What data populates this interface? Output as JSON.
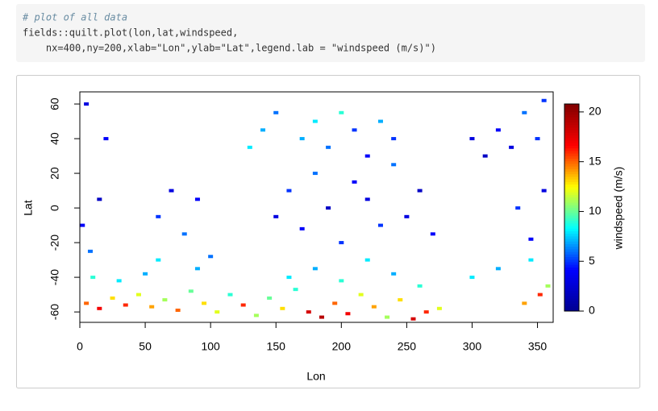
{
  "code": [
    "# plot of all data",
    "fields::quilt.plot(lon,lat,windspeed,",
    "    nx=400,ny=200,xlab=\"Lon\",ylab=\"Lat\",legend.lab = \"windspeed (m/s)\")"
  ],
  "chart_data": {
    "type": "quilt",
    "xlabel": "Lon",
    "ylabel": "Lat",
    "legend_label": "windspeed (m/s)",
    "xlim": [
      0,
      362
    ],
    "xticks": [
      0,
      50,
      100,
      150,
      200,
      250,
      300,
      350
    ],
    "ylim": [
      -66,
      67
    ],
    "yticks": [
      -60,
      -40,
      -20,
      0,
      20,
      40,
      60
    ],
    "zlim": [
      0,
      20.8
    ],
    "zticks": [
      0,
      5,
      10,
      15,
      20
    ],
    "colors": [
      "#00008F",
      "#0000FF",
      "#00FFFF",
      "#FFFF00",
      "#FF0000",
      "#800000"
    ],
    "x": [
      5,
      15,
      25,
      35,
      45,
      55,
      65,
      75,
      85,
      95,
      105,
      115,
      125,
      135,
      145,
      155,
      165,
      175,
      185,
      195,
      205,
      215,
      225,
      235,
      245,
      255,
      265,
      275,
      340,
      352,
      358,
      10,
      30,
      50,
      60,
      90,
      100,
      160,
      180,
      200,
      220,
      240,
      260,
      300,
      320,
      345,
      8,
      2,
      60,
      70,
      80,
      90,
      150,
      160,
      170,
      180,
      190,
      200,
      210,
      220,
      230,
      240,
      250,
      260,
      270,
      335,
      345,
      355,
      15,
      170,
      180,
      190,
      200,
      210,
      220,
      230,
      240,
      320,
      330,
      340,
      350,
      300,
      310,
      140,
      130,
      150,
      20,
      5,
      355
    ],
    "y": [
      -55,
      -58,
      -52,
      -56,
      -50,
      -57,
      -53,
      -59,
      -48,
      -55,
      -60,
      -50,
      -56,
      -62,
      -52,
      -58,
      -47,
      -60,
      -63,
      -55,
      -61,
      -50,
      -57,
      -63,
      -53,
      -64,
      -60,
      -58,
      -55,
      -50,
      -45,
      -40,
      -42,
      -38,
      -30,
      -35,
      -28,
      -40,
      -35,
      -42,
      -30,
      -38,
      -45,
      -40,
      -35,
      -30,
      -25,
      -10,
      -5,
      10,
      -15,
      5,
      -5,
      10,
      -12,
      20,
      0,
      -20,
      15,
      5,
      -10,
      25,
      -5,
      10,
      -15,
      0,
      -18,
      10,
      5,
      40,
      50,
      35,
      55,
      45,
      30,
      50,
      40,
      45,
      35,
      55,
      40,
      40,
      30,
      45,
      35,
      55,
      40,
      60,
      62
    ],
    "values": [
      15,
      17,
      13,
      16,
      12,
      14,
      11,
      15,
      10,
      13,
      12,
      9,
      16,
      11,
      10,
      13,
      9,
      18,
      19,
      15,
      17,
      12,
      14,
      11,
      13,
      18,
      16,
      12,
      14,
      16,
      11,
      9,
      8,
      7,
      8,
      7,
      6,
      8,
      7,
      9,
      8,
      7,
      9,
      8,
      7,
      8,
      6,
      4,
      5,
      3,
      6,
      4,
      3,
      5,
      4,
      6,
      2,
      5,
      4,
      3,
      5,
      6,
      3,
      2,
      4,
      5,
      4,
      3,
      2,
      7,
      8,
      6,
      9,
      5,
      4,
      7,
      5,
      4,
      3,
      6,
      5,
      3,
      2,
      7,
      8,
      6,
      4,
      3,
      5
    ]
  }
}
